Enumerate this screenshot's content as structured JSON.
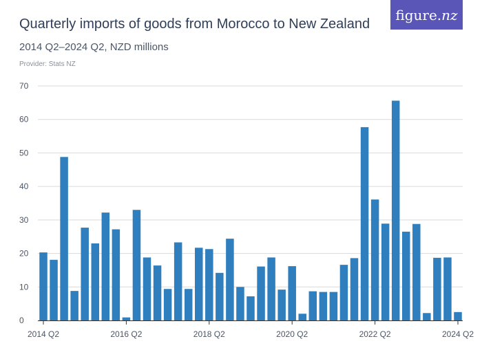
{
  "header": {
    "title": "Quarterly imports of goods from Morocco to New Zealand",
    "subtitle": "2014 Q2–2024 Q2, NZD millions",
    "provider": "Provider: Stats NZ"
  },
  "logo": {
    "main": "figure.",
    "suffix": "nz",
    "background_color": "#5a56b8"
  },
  "chart_data": {
    "type": "bar",
    "title": "Quarterly imports of goods from Morocco to New Zealand",
    "subtitle": "2014 Q2–2024 Q2, NZD millions",
    "xlabel": "",
    "ylabel": "",
    "ylim": [
      0,
      70
    ],
    "yticks": [
      0,
      10,
      20,
      30,
      40,
      50,
      60,
      70
    ],
    "grid": true,
    "bar_color": "#2f7fbf",
    "categories": [
      "2014 Q2",
      "2014 Q3",
      "2014 Q4",
      "2015 Q1",
      "2015 Q2",
      "2015 Q3",
      "2015 Q4",
      "2016 Q1",
      "2016 Q2",
      "2016 Q3",
      "2016 Q4",
      "2017 Q1",
      "2017 Q2",
      "2017 Q3",
      "2017 Q4",
      "2018 Q1",
      "2018 Q2",
      "2018 Q3",
      "2018 Q4",
      "2019 Q1",
      "2019 Q2",
      "2019 Q3",
      "2019 Q4",
      "2020 Q1",
      "2020 Q2",
      "2020 Q3",
      "2020 Q4",
      "2021 Q1",
      "2021 Q2",
      "2021 Q3",
      "2021 Q4",
      "2022 Q1",
      "2022 Q2",
      "2022 Q3",
      "2022 Q4",
      "2023 Q1",
      "2023 Q2",
      "2023 Q3",
      "2023 Q4",
      "2024 Q1",
      "2024 Q2"
    ],
    "values": [
      20.3,
      18.1,
      48.8,
      8.8,
      27.7,
      23.0,
      32.2,
      27.2,
      0.9,
      33.0,
      18.8,
      16.4,
      9.4,
      23.3,
      9.4,
      21.7,
      21.3,
      14.2,
      24.4,
      10.0,
      7.2,
      16.1,
      18.8,
      9.2,
      16.2,
      2.0,
      8.7,
      8.5,
      8.5,
      16.6,
      18.6,
      57.7,
      36.1,
      28.9,
      65.6,
      26.5,
      28.8,
      2.2,
      18.7,
      18.8,
      2.5
    ],
    "xtick_labels": [
      "2014 Q2",
      "2016 Q2",
      "2018 Q2",
      "2020 Q2",
      "2022 Q2",
      "2024 Q2"
    ]
  }
}
